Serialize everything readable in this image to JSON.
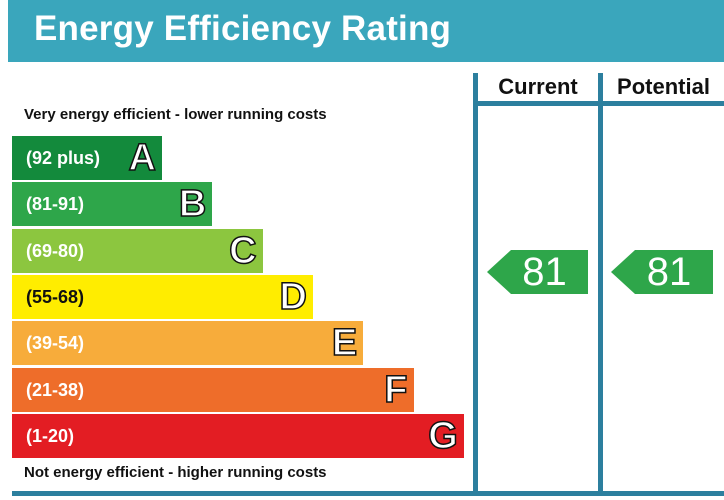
{
  "title": "Energy Efficiency Rating",
  "columns": {
    "current": "Current",
    "potential": "Potential"
  },
  "captions": {
    "top": "Very energy efficient - lower running costs",
    "bottom": "Not energy efficient - higher running costs"
  },
  "chart_data": {
    "type": "bar",
    "title": "Energy Efficiency Rating",
    "categories": [
      "A",
      "B",
      "C",
      "D",
      "E",
      "F",
      "G"
    ],
    "bands": [
      {
        "letter": "A",
        "range": "(92 plus)",
        "color": "#138a3c"
      },
      {
        "letter": "B",
        "range": "(81-91)",
        "color": "#2ea64a"
      },
      {
        "letter": "C",
        "range": "(69-80)",
        "color": "#8cc63f"
      },
      {
        "letter": "D",
        "range": "(55-68)",
        "color": "#ffed00"
      },
      {
        "letter": "E",
        "range": "(39-54)",
        "color": "#f7ac3b"
      },
      {
        "letter": "F",
        "range": "(21-38)",
        "color": "#ee6d2a"
      },
      {
        "letter": "G",
        "range": "(1-20)",
        "color": "#e31d23"
      }
    ],
    "current": {
      "value": 81,
      "label": "81",
      "band": "B"
    },
    "potential": {
      "value": 81,
      "label": "81",
      "band": "B"
    },
    "arrow_color": "#2ea64a"
  }
}
